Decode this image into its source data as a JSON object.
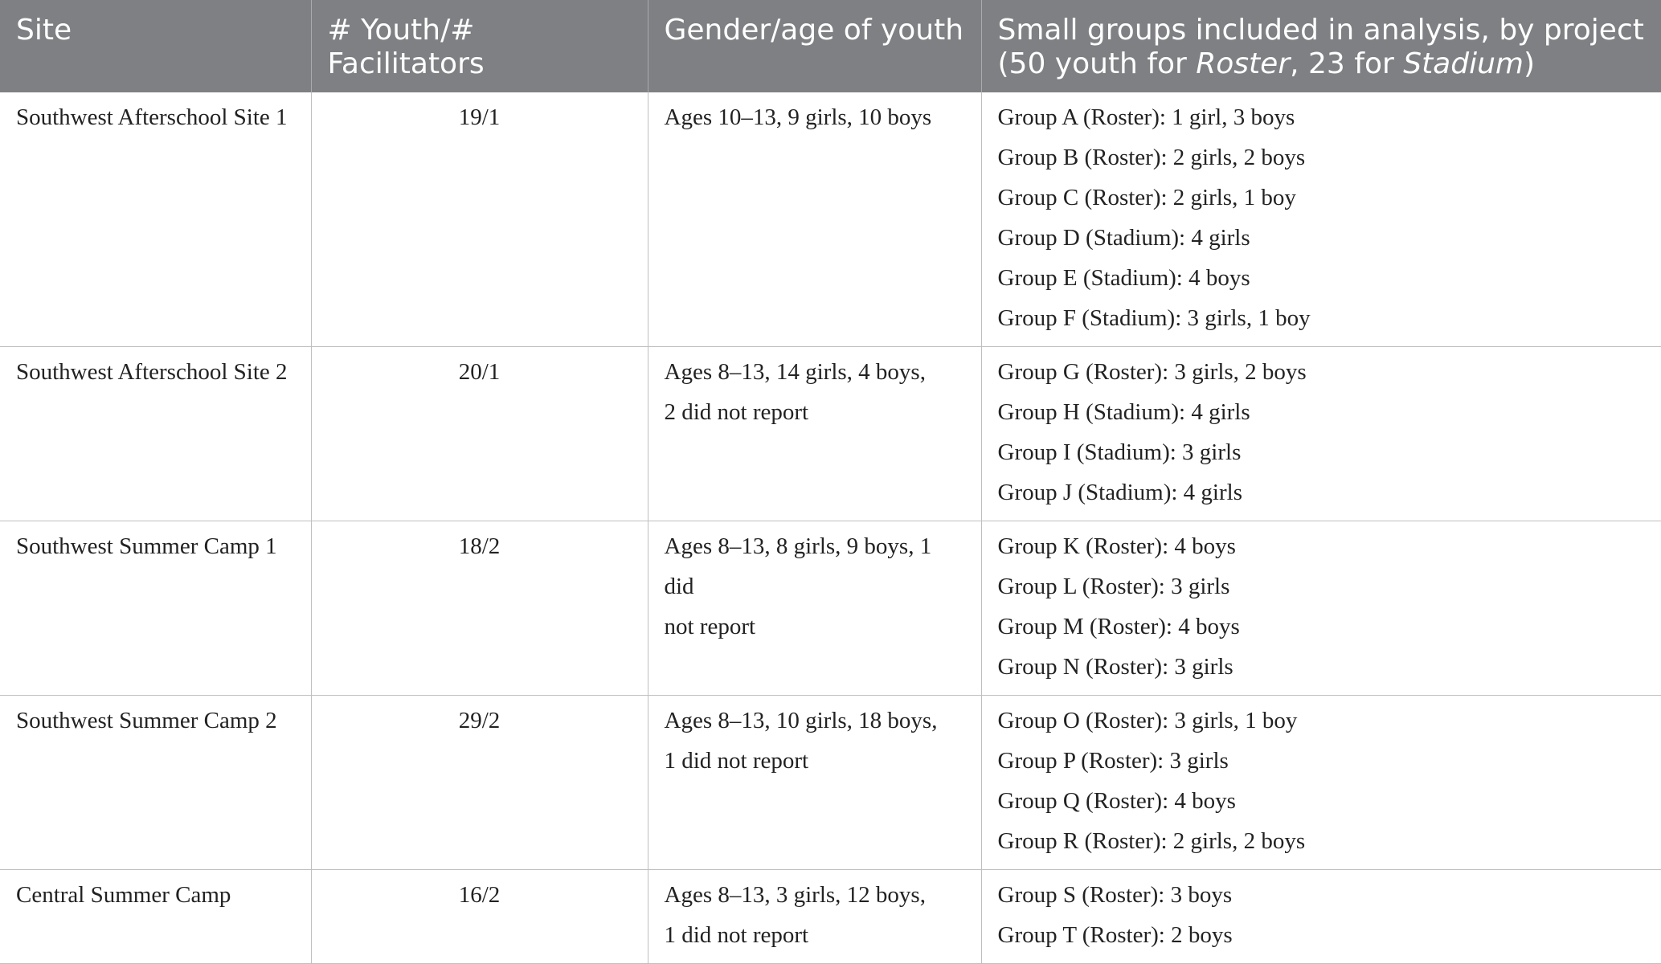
{
  "header": {
    "col1": "Site",
    "col2": "# Youth/# Facilitators",
    "col3": "Gender/age of youth",
    "col4_line1": "Small groups included in analysis, by project",
    "col4_p1": "(50 youth for ",
    "col4_e1": "Roster",
    "col4_p2": ", 23 for ",
    "col4_e2": "Stadium",
    "col4_p3": ")"
  },
  "rows": [
    {
      "site": "Southwest Afterschool Site 1",
      "ratio": "19/1",
      "demo": [
        "Ages 10–13, 9 girls, 10 boys"
      ],
      "groups": [
        "Group A (Roster): 1 girl, 3 boys",
        "Group B (Roster): 2 girls, 2 boys",
        "Group C (Roster): 2 girls, 1 boy",
        "Group D (Stadium): 4 girls",
        "Group E (Stadium): 4 boys",
        "Group F (Stadium): 3 girls, 1 boy"
      ]
    },
    {
      "site": "Southwest Afterschool Site 2",
      "ratio": "20/1",
      "demo": [
        "Ages 8–13, 14 girls, 4 boys,",
        "2 did not report"
      ],
      "groups": [
        "Group G (Roster): 3 girls, 2 boys",
        "Group H (Stadium): 4 girls",
        "Group I (Stadium): 3 girls",
        "Group J (Stadium): 4 girls"
      ]
    },
    {
      "site": "Southwest Summer Camp 1",
      "ratio": "18/2",
      "demo": [
        "Ages 8–13, 8 girls, 9 boys, 1 did",
        "not report"
      ],
      "groups": [
        "Group K (Roster): 4 boys",
        "Group L (Roster): 3 girls",
        "Group M (Roster): 4 boys",
        "Group N (Roster): 3 girls"
      ]
    },
    {
      "site": "Southwest Summer Camp 2",
      "ratio": "29/2",
      "demo": [
        "Ages 8–13, 10 girls, 18 boys,",
        "1 did not report"
      ],
      "groups": [
        "Group O (Roster): 3 girls, 1 boy",
        "Group P (Roster): 3 girls",
        "Group Q (Roster): 4 boys",
        "Group R (Roster): 2 girls, 2 boys"
      ]
    },
    {
      "site": "Central Summer Camp",
      "ratio": "16/2",
      "demo": [
        "Ages 8–13, 3 girls, 12 boys,",
        "1 did not report"
      ],
      "groups": [
        "Group S (Roster): 3 boys",
        "Group T (Roster): 2 boys"
      ]
    }
  ]
}
